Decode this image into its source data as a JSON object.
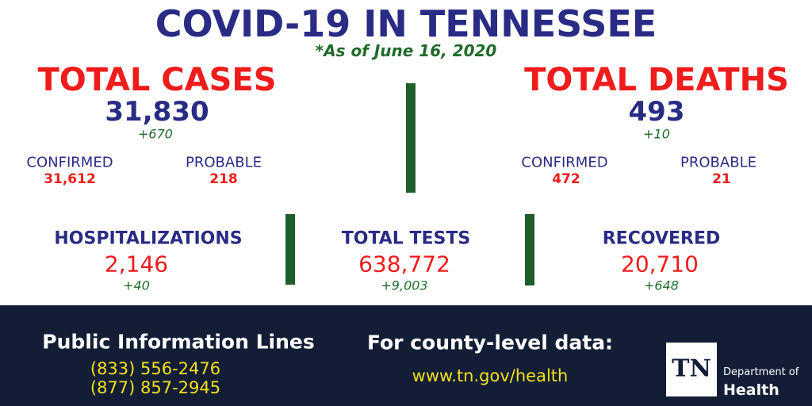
{
  "header": {
    "title": "COVID-19 IN TENNESSEE",
    "date": "*As of June 16, 2020"
  },
  "cases": {
    "label": "TOTAL CASES",
    "total": "31,830",
    "change": "+670",
    "confirmed_label": "CONFIRMED",
    "confirmed": "31,612",
    "probable_label": "PROBABLE",
    "probable": "218"
  },
  "deaths": {
    "label": "TOTAL DEATHS",
    "total": "493",
    "change": "+10",
    "confirmed_label": "CONFIRMED",
    "confirmed": "472",
    "probable_label": "PROBABLE",
    "probable": "21"
  },
  "hospitalizations": {
    "label": "HOSPITALIZATIONS",
    "value": "2,146",
    "change": "+40"
  },
  "tests": {
    "label": "TOTAL TESTS",
    "value": "638,772",
    "change": "+9,003"
  },
  "recovered": {
    "label": "RECOVERED",
    "value": "20,710",
    "change": "+648"
  },
  "footer": {
    "lines_title": "Public Information Lines",
    "phones": [
      "(833) 556-2476",
      "(877) 857-2945"
    ],
    "county_title": "For county-level data:",
    "url": "www.tn.gov/health",
    "logo": {
      "mark": "TN",
      "line1": "Department of",
      "line2": "Health"
    }
  }
}
